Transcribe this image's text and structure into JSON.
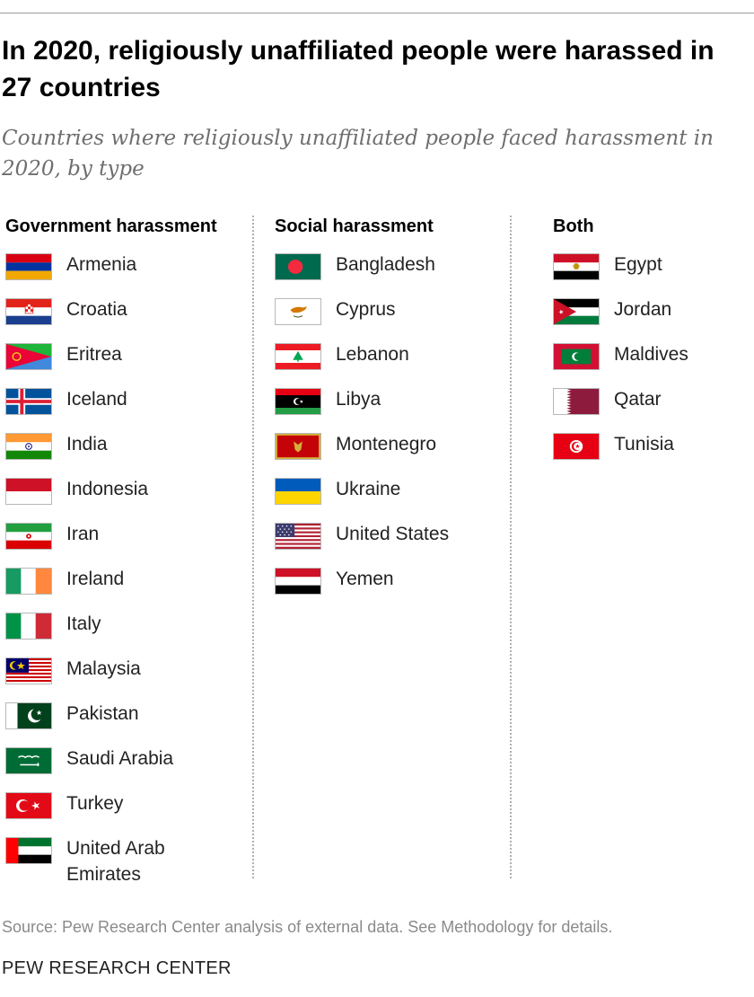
{
  "title": "In 2020, religiously unaffiliated people were harassed in 27 countries",
  "subtitle": "Countries where religiously unaffiliated people faced harassment in 2020, by type",
  "columns": [
    {
      "heading": "Government harassment",
      "countries": [
        {
          "name": "Armenia",
          "flag": "armenia-flag"
        },
        {
          "name": "Croatia",
          "flag": "croatia-flag"
        },
        {
          "name": "Eritrea",
          "flag": "eritrea-flag"
        },
        {
          "name": "Iceland",
          "flag": "iceland-flag"
        },
        {
          "name": "India",
          "flag": "india-flag"
        },
        {
          "name": "Indonesia",
          "flag": "indonesia-flag"
        },
        {
          "name": "Iran",
          "flag": "iran-flag"
        },
        {
          "name": "Ireland",
          "flag": "ireland-flag"
        },
        {
          "name": "Italy",
          "flag": "italy-flag"
        },
        {
          "name": "Malaysia",
          "flag": "malaysia-flag"
        },
        {
          "name": "Pakistan",
          "flag": "pakistan-flag"
        },
        {
          "name": "Saudi Arabia",
          "flag": "saudi-arabia-flag"
        },
        {
          "name": "Turkey",
          "flag": "turkey-flag"
        },
        {
          "name": "United Arab\nEmirates",
          "flag": "uae-flag"
        }
      ]
    },
    {
      "heading": "Social harassment",
      "countries": [
        {
          "name": "Bangladesh",
          "flag": "bangladesh-flag"
        },
        {
          "name": "Cyprus",
          "flag": "cyprus-flag"
        },
        {
          "name": "Lebanon",
          "flag": "lebanon-flag"
        },
        {
          "name": "Libya",
          "flag": "libya-flag"
        },
        {
          "name": "Montenegro",
          "flag": "montenegro-flag"
        },
        {
          "name": "Ukraine",
          "flag": "ukraine-flag"
        },
        {
          "name": "United States",
          "flag": "united-states-flag"
        },
        {
          "name": "Yemen",
          "flag": "yemen-flag"
        }
      ]
    },
    {
      "heading": "Both",
      "countries": [
        {
          "name": "Egypt",
          "flag": "egypt-flag"
        },
        {
          "name": "Jordan",
          "flag": "jordan-flag"
        },
        {
          "name": "Maldives",
          "flag": "maldives-flag"
        },
        {
          "name": "Qatar",
          "flag": "qatar-flag"
        },
        {
          "name": "Tunisia",
          "flag": "tunisia-flag"
        }
      ]
    }
  ],
  "source": "Source: Pew Research Center analysis of external data. See Methodology for details.",
  "brand": "PEW RESEARCH CENTER"
}
